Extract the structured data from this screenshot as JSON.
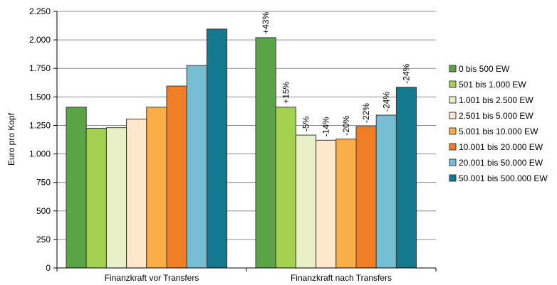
{
  "chart_data": {
    "type": "bar",
    "ylabel": "Euro pro Kopf",
    "ylim": [
      0,
      2250
    ],
    "yticks": [
      0,
      250,
      500,
      750,
      1000,
      1250,
      1500,
      1750,
      2000,
      2250
    ],
    "ytick_labels": [
      "0",
      "250",
      "500",
      "750",
      "1.000",
      "1.250",
      "1.500",
      "1.750",
      "2.000",
      "2.250"
    ],
    "grid": true,
    "legend_position": "right",
    "categories": [
      "Finanzkraft vor Transfers",
      "Finanzkraft nach Transfers"
    ],
    "series": [
      {
        "name": "0 bis 500 EW",
        "color": "#5aa347",
        "values": [
          1410,
          2020
        ],
        "labels": [
          "",
          "+43%"
        ]
      },
      {
        "name": "501 bis 1.000 EW",
        "color": "#a4d150",
        "values": [
          1225,
          1410
        ],
        "labels": [
          "",
          "+15%"
        ]
      },
      {
        "name": "1.001 bis 2.500 EW",
        "color": "#e9f0c8",
        "values": [
          1230,
          1165
        ],
        "labels": [
          "",
          "-5%"
        ]
      },
      {
        "name": "2.501 bis 5.000 EW",
        "color": "#fde7cd",
        "values": [
          1305,
          1120
        ],
        "labels": [
          "",
          "-14%"
        ]
      },
      {
        "name": "5.001 bis 10.000 EW",
        "color": "#f9ae48",
        "values": [
          1410,
          1130
        ],
        "labels": [
          "",
          "-20%"
        ]
      },
      {
        "name": "10.001 bis 20.000 EW",
        "color": "#f07e26",
        "values": [
          1595,
          1240
        ],
        "labels": [
          "",
          "-22%"
        ]
      },
      {
        "name": "20.001 bis 50.000 EW",
        "color": "#75bed3",
        "values": [
          1775,
          1340
        ],
        "labels": [
          "",
          "-24%"
        ]
      },
      {
        "name": "50.001 bis 500.000 EW",
        "color": "#12798f",
        "values": [
          2095,
          1585
        ],
        "labels": [
          "",
          "-24%"
        ]
      }
    ]
  }
}
